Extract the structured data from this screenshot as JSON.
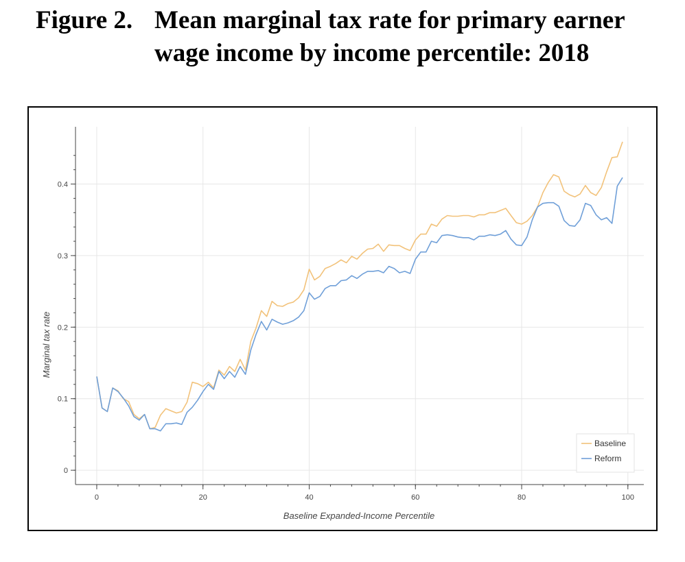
{
  "figure": {
    "label": "Figure 2.",
    "title": "Mean marginal tax rate for primary earner wage income by income percentile: 2018"
  },
  "chart_data": {
    "type": "line",
    "title": "Mean marginal tax rate for primary earner wage income by income percentile: 2018",
    "xlabel": "Baseline Expanded-Income Percentile",
    "ylabel": "Marginal tax rate",
    "xlim": [
      -4,
      103
    ],
    "ylim": [
      -0.02,
      0.48
    ],
    "xticks": [
      0,
      20,
      40,
      60,
      80,
      100
    ],
    "yticks": [
      0,
      0.1,
      0.2,
      0.3,
      0.4
    ],
    "ytick_labels": [
      "0",
      "0.1",
      "0.2",
      "0.3",
      "0.4"
    ],
    "grid": true,
    "legend_position": "bottom-right",
    "series": [
      {
        "name": "Baseline",
        "color": "#f2c27a",
        "x": [
          0,
          1,
          2,
          3,
          4,
          5,
          6,
          7,
          8,
          9,
          10,
          11,
          12,
          13,
          14,
          15,
          16,
          17,
          18,
          19,
          20,
          21,
          22,
          23,
          24,
          25,
          26,
          27,
          28,
          29,
          30,
          31,
          32,
          33,
          34,
          35,
          36,
          37,
          38,
          39,
          40,
          41,
          42,
          43,
          44,
          45,
          46,
          47,
          48,
          49,
          50,
          51,
          52,
          53,
          54,
          55,
          56,
          57,
          58,
          59,
          60,
          61,
          62,
          63,
          64,
          65,
          66,
          67,
          68,
          69,
          70,
          71,
          72,
          73,
          74,
          75,
          76,
          77,
          78,
          79,
          80,
          81,
          82,
          83,
          84,
          85,
          86,
          87,
          88,
          89,
          90,
          91,
          92,
          93,
          94,
          95,
          96,
          97,
          98,
          99
        ],
        "values": [
          0.131,
          0.087,
          0.082,
          0.115,
          0.111,
          0.1,
          0.096,
          0.078,
          0.072,
          0.078,
          0.058,
          0.06,
          0.077,
          0.086,
          0.083,
          0.08,
          0.082,
          0.095,
          0.123,
          0.121,
          0.117,
          0.123,
          0.115,
          0.14,
          0.133,
          0.145,
          0.138,
          0.155,
          0.14,
          0.18,
          0.199,
          0.223,
          0.215,
          0.236,
          0.23,
          0.229,
          0.233,
          0.235,
          0.241,
          0.252,
          0.281,
          0.266,
          0.271,
          0.282,
          0.285,
          0.289,
          0.294,
          0.29,
          0.299,
          0.295,
          0.303,
          0.309,
          0.31,
          0.316,
          0.306,
          0.315,
          0.314,
          0.314,
          0.31,
          0.307,
          0.322,
          0.33,
          0.33,
          0.344,
          0.341,
          0.351,
          0.356,
          0.355,
          0.355,
          0.356,
          0.356,
          0.354,
          0.357,
          0.357,
          0.36,
          0.36,
          0.363,
          0.366,
          0.356,
          0.346,
          0.344,
          0.348,
          0.356,
          0.368,
          0.388,
          0.402,
          0.413,
          0.41,
          0.39,
          0.385,
          0.382,
          0.386,
          0.398,
          0.388,
          0.384,
          0.395,
          0.417,
          0.437,
          0.438,
          0.459
        ]
      },
      {
        "name": "Reform",
        "color": "#6f9fd8",
        "x": [
          0,
          1,
          2,
          3,
          4,
          5,
          6,
          7,
          8,
          9,
          10,
          11,
          12,
          13,
          14,
          15,
          16,
          17,
          18,
          19,
          20,
          21,
          22,
          23,
          24,
          25,
          26,
          27,
          28,
          29,
          30,
          31,
          32,
          33,
          34,
          35,
          36,
          37,
          38,
          39,
          40,
          41,
          42,
          43,
          44,
          45,
          46,
          47,
          48,
          49,
          50,
          51,
          52,
          53,
          54,
          55,
          56,
          57,
          58,
          59,
          60,
          61,
          62,
          63,
          64,
          65,
          66,
          67,
          68,
          69,
          70,
          71,
          72,
          73,
          74,
          75,
          76,
          77,
          78,
          79,
          80,
          81,
          82,
          83,
          84,
          85,
          86,
          87,
          88,
          89,
          90,
          91,
          92,
          93,
          94,
          95,
          96,
          97,
          98,
          99
        ],
        "values": [
          0.131,
          0.087,
          0.082,
          0.115,
          0.11,
          0.101,
          0.09,
          0.075,
          0.07,
          0.078,
          0.058,
          0.058,
          0.055,
          0.065,
          0.065,
          0.066,
          0.064,
          0.081,
          0.088,
          0.098,
          0.11,
          0.12,
          0.113,
          0.138,
          0.128,
          0.138,
          0.13,
          0.145,
          0.134,
          0.168,
          0.19,
          0.208,
          0.196,
          0.211,
          0.207,
          0.204,
          0.206,
          0.209,
          0.214,
          0.223,
          0.248,
          0.239,
          0.243,
          0.254,
          0.258,
          0.258,
          0.265,
          0.266,
          0.272,
          0.268,
          0.274,
          0.278,
          0.278,
          0.279,
          0.276,
          0.285,
          0.282,
          0.276,
          0.278,
          0.275,
          0.295,
          0.305,
          0.305,
          0.32,
          0.318,
          0.328,
          0.329,
          0.328,
          0.326,
          0.325,
          0.325,
          0.322,
          0.327,
          0.327,
          0.329,
          0.328,
          0.33,
          0.335,
          0.323,
          0.315,
          0.314,
          0.326,
          0.35,
          0.368,
          0.373,
          0.374,
          0.374,
          0.369,
          0.349,
          0.342,
          0.341,
          0.35,
          0.373,
          0.37,
          0.357,
          0.35,
          0.353,
          0.345,
          0.397,
          0.409
        ]
      }
    ]
  }
}
